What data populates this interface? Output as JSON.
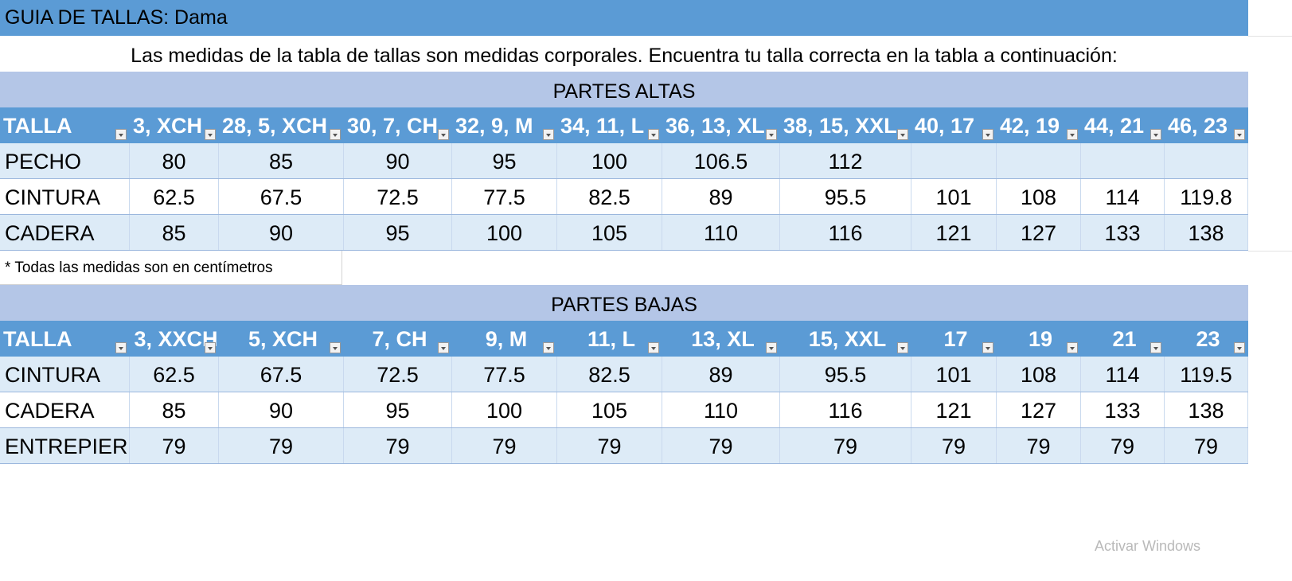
{
  "title": "GUIA DE TALLAS: Dama",
  "subtitle": "Las medidas de la tabla de tallas son medidas corporales. Encuentra tu talla correcta en la tabla a continuación:",
  "colors": {
    "header": "#5b9bd5",
    "band": "#b4c6e7",
    "row_alt": "#ddebf7"
  },
  "tops": {
    "heading": "PARTES ALTAS",
    "headers": [
      "TALLA",
      "3, XCH",
      "28, 5, XCH",
      "30, 7, CH",
      "32, 9, M",
      "34, 11, L",
      "36, 13, XL",
      "38, 15, XXL",
      "40, 17",
      "42, 19",
      "44, 21",
      "46, 23"
    ],
    "rows": [
      [
        "PECHO",
        "80",
        "85",
        "90",
        "95",
        "100",
        "106.5",
        "112",
        "",
        "",
        "",
        ""
      ],
      [
        "CINTURA",
        "62.5",
        "67.5",
        "72.5",
        "77.5",
        "82.5",
        "89",
        "95.5",
        "101",
        "108",
        "114",
        "119.8"
      ],
      [
        "CADERA",
        "85",
        "90",
        "95",
        "100",
        "105",
        "110",
        "116",
        "121",
        "127",
        "133",
        "138"
      ]
    ]
  },
  "note": "* Todas las medidas son en centímetros",
  "bottoms": {
    "heading": "PARTES BAJAS",
    "headers": [
      "TALLA",
      "3, XXCH",
      "5, XCH",
      "7, CH",
      "9, M",
      "11, L",
      "13, XL",
      "15, XXL",
      "17",
      "19",
      "21",
      "23"
    ],
    "rows": [
      [
        "CINTURA",
        "62.5",
        "67.5",
        "72.5",
        "77.5",
        "82.5",
        "89",
        "95.5",
        "101",
        "108",
        "114",
        "119.5"
      ],
      [
        "CADERA",
        "85",
        "90",
        "95",
        "100",
        "105",
        "110",
        "116",
        "121",
        "127",
        "133",
        "138"
      ],
      [
        "ENTREPIERNA",
        "79",
        "79",
        "79",
        "79",
        "79",
        "79",
        "79",
        "79",
        "79",
        "79",
        "79"
      ]
    ]
  },
  "watermark": "Activar Windows"
}
